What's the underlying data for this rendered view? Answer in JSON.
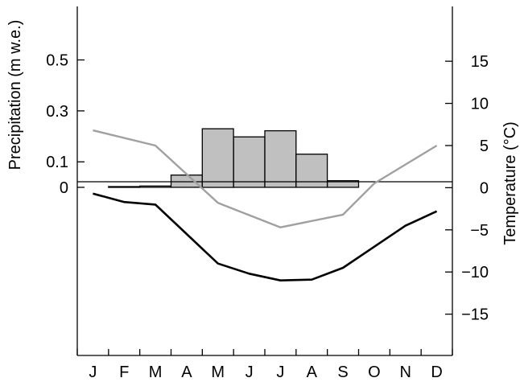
{
  "chart_data": {
    "type": "bar",
    "categories": [
      "J",
      "F",
      "M",
      "A",
      "M",
      "J",
      "J",
      "A",
      "S",
      "O",
      "N",
      "D"
    ],
    "ylabel": "Precipitation (m w.e.)",
    "y2label": "Temperature (°C)",
    "left_ticks": [
      "0.5",
      "0.3",
      "0.1",
      "0"
    ],
    "left_tick_values": [
      0.5,
      0.3,
      0.1,
      0
    ],
    "right_ticks": [
      15,
      10,
      5,
      0,
      -5,
      -10,
      -15
    ],
    "ylim_precip": [
      -0.66,
      0.71
    ],
    "ylim_temp": [
      -19.9,
      21.5
    ],
    "grid": false,
    "series": [
      {
        "kind": "bar",
        "axis": "left",
        "color": "#c0c0c0",
        "values": [
          0,
          0.003,
          0.005,
          0.048,
          0.23,
          0.198,
          0.222,
          0.13,
          0.026,
          0,
          0,
          0
        ]
      },
      {
        "kind": "line",
        "axis": "right",
        "color": "#a0a0a0",
        "values": [
          6.8,
          null,
          5.0,
          null,
          -1.8,
          null,
          -4.7,
          null,
          -3.2,
          0.5,
          null,
          5.0
        ]
      },
      {
        "kind": "line",
        "axis": "right",
        "color": "#000000",
        "values": [
          -0.7,
          -1.7,
          -2.0,
          -5.5,
          -9.0,
          -10.2,
          -11.0,
          -10.9,
          -9.5,
          -7.0,
          -4.5,
          -2.8
        ]
      }
    ]
  }
}
